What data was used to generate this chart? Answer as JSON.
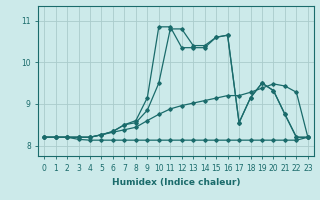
{
  "xlabel": "Humidex (Indice chaleur)",
  "bg_color": "#cceaea",
  "line_color": "#1a6b6b",
  "grid_color": "#aacccc",
  "xlim": [
    -0.5,
    23.5
  ],
  "ylim": [
    7.75,
    11.35
  ],
  "yticks": [
    8,
    9,
    10,
    11
  ],
  "xticks": [
    0,
    1,
    2,
    3,
    4,
    5,
    6,
    7,
    8,
    9,
    10,
    11,
    12,
    13,
    14,
    15,
    16,
    17,
    18,
    19,
    20,
    21,
    22,
    23
  ],
  "line1_y": [
    8.2,
    8.2,
    8.2,
    8.15,
    8.13,
    8.13,
    8.13,
    8.13,
    8.13,
    8.13,
    8.13,
    8.13,
    8.13,
    8.13,
    8.13,
    8.13,
    8.13,
    8.13,
    8.13,
    8.13,
    8.13,
    8.13,
    8.13,
    8.2
  ],
  "line2_y": [
    8.2,
    8.2,
    8.2,
    8.2,
    8.2,
    8.26,
    8.32,
    8.38,
    8.44,
    8.6,
    8.75,
    8.88,
    8.96,
    9.02,
    9.08,
    9.14,
    9.2,
    9.2,
    9.28,
    9.38,
    9.48,
    9.43,
    9.28,
    8.2
  ],
  "line3_y": [
    8.2,
    8.2,
    8.2,
    8.2,
    8.2,
    8.26,
    8.34,
    8.5,
    8.55,
    8.85,
    9.5,
    10.8,
    10.8,
    10.4,
    10.4,
    10.6,
    10.65,
    8.55,
    9.15,
    9.5,
    9.32,
    8.75,
    8.2,
    8.2
  ],
  "line4_y": [
    8.2,
    8.2,
    8.2,
    8.2,
    8.2,
    8.26,
    8.34,
    8.5,
    8.6,
    9.15,
    10.85,
    10.85,
    10.35,
    10.35,
    10.35,
    10.6,
    10.65,
    8.55,
    9.15,
    9.5,
    9.32,
    8.75,
    8.2,
    8.2
  ],
  "tick_fontsize": 5.5,
  "label_fontsize": 6.5
}
